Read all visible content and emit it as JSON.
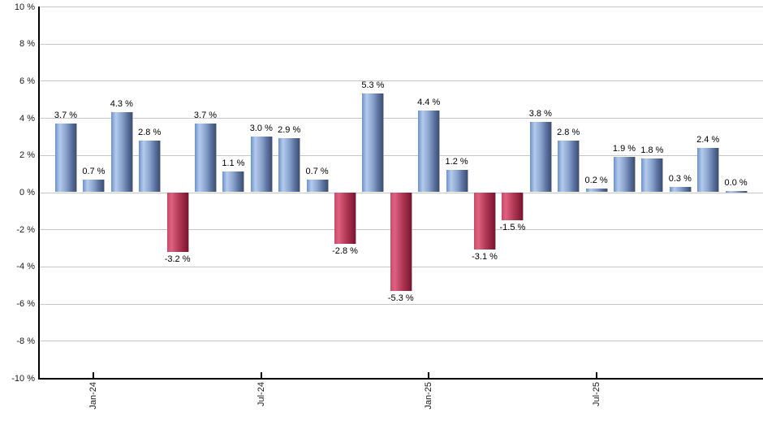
{
  "chart_data": {
    "type": "bar",
    "title": "",
    "xlabel": "",
    "ylabel": "",
    "ylim": [
      -10,
      10
    ],
    "grid": true,
    "value_suffix": " %",
    "values": [
      3.7,
      0.7,
      4.3,
      2.8,
      -3.2,
      3.7,
      1.1,
      3.0,
      2.9,
      0.7,
      -2.8,
      5.3,
      -5.3,
      4.4,
      1.2,
      -3.1,
      -1.5,
      3.8,
      2.8,
      0.2,
      1.9,
      1.8,
      0.3,
      2.4,
      0.0
    ],
    "bar_labels": [
      "3.7 %",
      "0.7 %",
      "4.3 %",
      "2.8 %",
      "-3.2 %",
      "3.7 %",
      "1.1 %",
      "3.0 %",
      "2.9 %",
      "0.7 %",
      "-2.8 %",
      "5.3 %",
      "-5.3 %",
      "4.4 %",
      "1.2 %",
      "-3.1 %",
      "-1.5 %",
      "3.8 %",
      "2.8 %",
      "0.2 %",
      "1.9 %",
      "1.8 %",
      "0.3 %",
      "2.4 %",
      "0.0 %"
    ],
    "x_ticks": [
      {
        "index": 1,
        "label": "Jan-24"
      },
      {
        "index": 7,
        "label": "Jul-24"
      },
      {
        "index": 13,
        "label": "Jan-25"
      },
      {
        "index": 19,
        "label": "Jul-25"
      }
    ],
    "y_ticks": [
      {
        "value": 10,
        "label": "10 %"
      },
      {
        "value": 8,
        "label": "8 %"
      },
      {
        "value": 6,
        "label": "6 %"
      },
      {
        "value": 4,
        "label": "4 %"
      },
      {
        "value": 2,
        "label": "2 %"
      },
      {
        "value": 0,
        "label": "0 %"
      },
      {
        "value": -2,
        "label": "-2 %"
      },
      {
        "value": -4,
        "label": "-4 %"
      },
      {
        "value": -6,
        "label": "-6 %"
      },
      {
        "value": -8,
        "label": "-8 %"
      },
      {
        "value": -10,
        "label": "-10 %"
      }
    ],
    "colors": {
      "positive_bar_light": "#b4cbee",
      "positive_bar_dark": "#3b4f74",
      "negative_bar_light": "#df6181",
      "negative_bar_dark": "#7c1331",
      "gridline": "#c6c6c6",
      "axis": "#000000",
      "label_text": "#000000"
    },
    "legend": null
  }
}
